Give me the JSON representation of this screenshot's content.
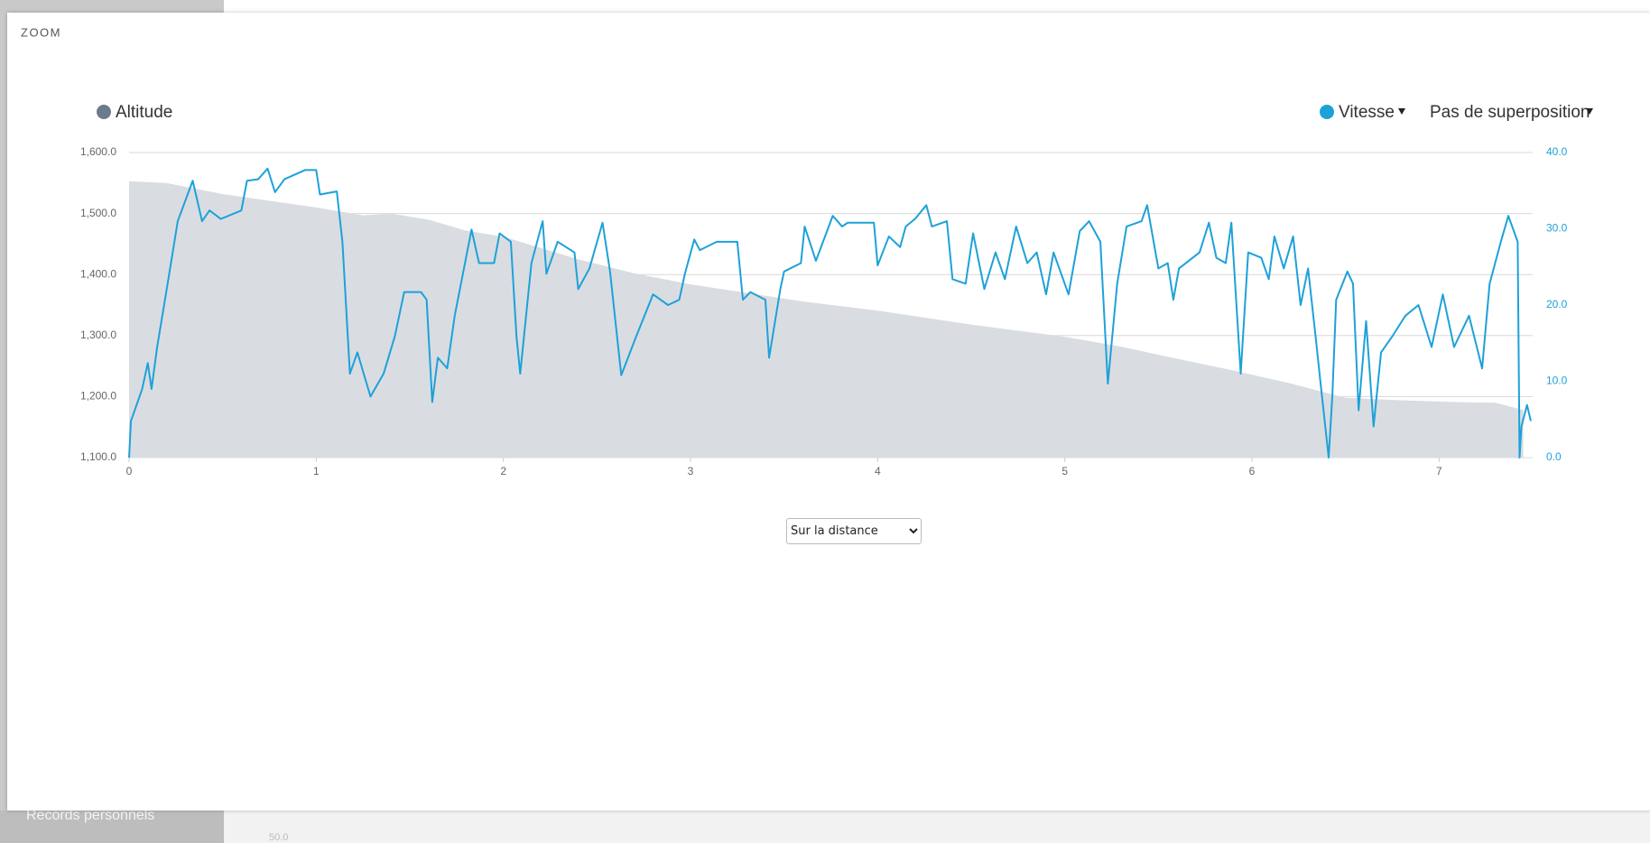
{
  "background": {
    "sidebar_item": "Records personnels",
    "tick": "50.0"
  },
  "modal": {
    "title": "ZOOM",
    "select": {
      "options": [
        "Sur la distance"
      ]
    },
    "overlay_menu": "Pas de superposition"
  },
  "chart_data": {
    "type": "line",
    "xlim": [
      0,
      7.5
    ],
    "xticks": [
      0,
      1,
      2,
      3,
      4,
      5,
      6,
      7
    ],
    "ylim": [
      1100,
      1600
    ],
    "yticks": [
      {
        "value": 1100,
        "label": "1,100.0"
      },
      {
        "value": 1200,
        "label": "1,200.0"
      },
      {
        "value": 1300,
        "label": "1,300.0"
      },
      {
        "value": 1400,
        "label": "1,400.0"
      },
      {
        "value": 1500,
        "label": "1,500.0"
      },
      {
        "value": 1600,
        "label": "1,600.0"
      }
    ],
    "y2lim": [
      0,
      40
    ],
    "y2ticks": [
      {
        "value": 0,
        "label": "0.0"
      },
      {
        "value": 10,
        "label": "10.0"
      },
      {
        "value": 20,
        "label": "20.0"
      },
      {
        "value": 30,
        "label": "30.0"
      },
      {
        "value": 40,
        "label": "40.0"
      }
    ],
    "grid": true,
    "series": [
      {
        "name": "Altitude",
        "type": "area",
        "color": "#d9dde1",
        "legend_color": "#6b7b8c",
        "x": [
          0,
          0.2,
          0.5,
          1.0,
          1.25,
          1.4,
          1.6,
          1.8,
          2.0,
          2.4,
          2.7,
          3.0,
          3.3,
          3.6,
          4.0,
          4.5,
          5.0,
          5.3,
          5.6,
          5.9,
          6.2,
          6.5,
          6.8,
          7.1,
          7.3,
          7.45
        ],
        "values": [
          1553,
          1550,
          1532,
          1510,
          1497,
          1500,
          1490,
          1472,
          1462,
          1425,
          1402,
          1384,
          1370,
          1356,
          1341,
          1318,
          1298,
          1282,
          1262,
          1243,
          1222,
          1198,
          1194,
          1191,
          1190,
          1178
        ]
      },
      {
        "name": "Vitesse",
        "type": "line",
        "axis": "y2",
        "color": "#1ea1d9",
        "x": [
          0,
          0.01,
          0.07,
          0.1,
          0.12,
          0.15,
          0.21,
          0.26,
          0.34,
          0.39,
          0.43,
          0.49,
          0.6,
          0.63,
          0.69,
          0.74,
          0.78,
          0.83,
          0.94,
          1.0,
          1.02,
          1.11,
          1.14,
          1.18,
          1.22,
          1.29,
          1.36,
          1.42,
          1.47,
          1.56,
          1.59,
          1.62,
          1.65,
          1.7,
          1.74,
          1.83,
          1.87,
          1.95,
          1.98,
          2.04,
          2.07,
          2.09,
          2.15,
          2.21,
          2.23,
          2.29,
          2.38,
          2.4,
          2.46,
          2.53,
          2.57,
          2.63,
          2.71,
          2.8,
          2.88,
          2.94,
          2.97,
          3.02,
          3.05,
          3.14,
          3.25,
          3.28,
          3.32,
          3.4,
          3.42,
          3.48,
          3.5,
          3.59,
          3.61,
          3.67,
          3.76,
          3.81,
          3.84,
          3.98,
          4.0,
          4.06,
          4.12,
          4.15,
          4.2,
          4.26,
          4.29,
          4.37,
          4.4,
          4.47,
          4.51,
          4.57,
          4.63,
          4.68,
          4.74,
          4.8,
          4.85,
          4.9,
          4.94,
          5.02,
          5.08,
          5.13,
          5.19,
          5.23,
          5.28,
          5.33,
          5.41,
          5.44,
          5.5,
          5.55,
          5.58,
          5.61,
          5.72,
          5.77,
          5.81,
          5.86,
          5.89,
          5.94,
          5.98,
          6.05,
          6.09,
          6.12,
          6.17,
          6.22,
          6.26,
          6.3,
          6.34,
          6.37,
          6.41,
          6.43,
          6.45,
          6.51,
          6.54,
          6.57,
          6.61,
          6.65,
          6.69,
          6.75,
          6.82,
          6.89,
          6.96,
          7.02,
          7.08,
          7.16,
          7.23,
          7.27,
          7.33,
          7.37,
          7.42,
          7.43,
          7.44,
          7.47,
          7.49
        ],
        "values": [
          0,
          4.8,
          9,
          12.4,
          9,
          14.5,
          23.4,
          31,
          36.3,
          31,
          32.4,
          31.3,
          32.4,
          36.3,
          36.5,
          37.9,
          34.8,
          36.5,
          37.7,
          37.7,
          34.5,
          34.9,
          28.3,
          11,
          13.8,
          8,
          11,
          15.9,
          21.7,
          21.7,
          20.7,
          7.3,
          13.1,
          11.7,
          18.6,
          29.9,
          25.5,
          25.5,
          29.4,
          28.3,
          15.9,
          11,
          25.5,
          31,
          24.1,
          28.3,
          26.9,
          22.1,
          24.8,
          30.8,
          24.4,
          10.8,
          15.9,
          21.4,
          20,
          20.7,
          24.1,
          28.6,
          27.2,
          28.3,
          28.3,
          20.7,
          21.7,
          20.7,
          13.1,
          22.1,
          24.4,
          25.5,
          30.3,
          25.8,
          31.7,
          30.3,
          30.8,
          30.8,
          25.2,
          29,
          27.6,
          30.3,
          31.3,
          33.1,
          30.3,
          31,
          23.4,
          22.8,
          29.4,
          22.1,
          26.9,
          23.4,
          30.3,
          25.5,
          26.9,
          21.4,
          26.9,
          21.4,
          29.7,
          31,
          28.3,
          9.7,
          22.8,
          30.3,
          31,
          33.1,
          24.8,
          25.5,
          20.7,
          24.8,
          26.9,
          30.8,
          26.2,
          25.5,
          30.8,
          11,
          26.9,
          26.2,
          23.4,
          29,
          24.8,
          29,
          20,
          24.8,
          15.9,
          9,
          0,
          8.3,
          20.7,
          24.4,
          22.8,
          6.2,
          17.9,
          4.1,
          13.8,
          15.9,
          18.6,
          20,
          14.5,
          21.4,
          14.5,
          18.6,
          11.7,
          22.8,
          28.3,
          31.7,
          28.3,
          0,
          4.1,
          6.9,
          4.8
        ]
      }
    ]
  }
}
